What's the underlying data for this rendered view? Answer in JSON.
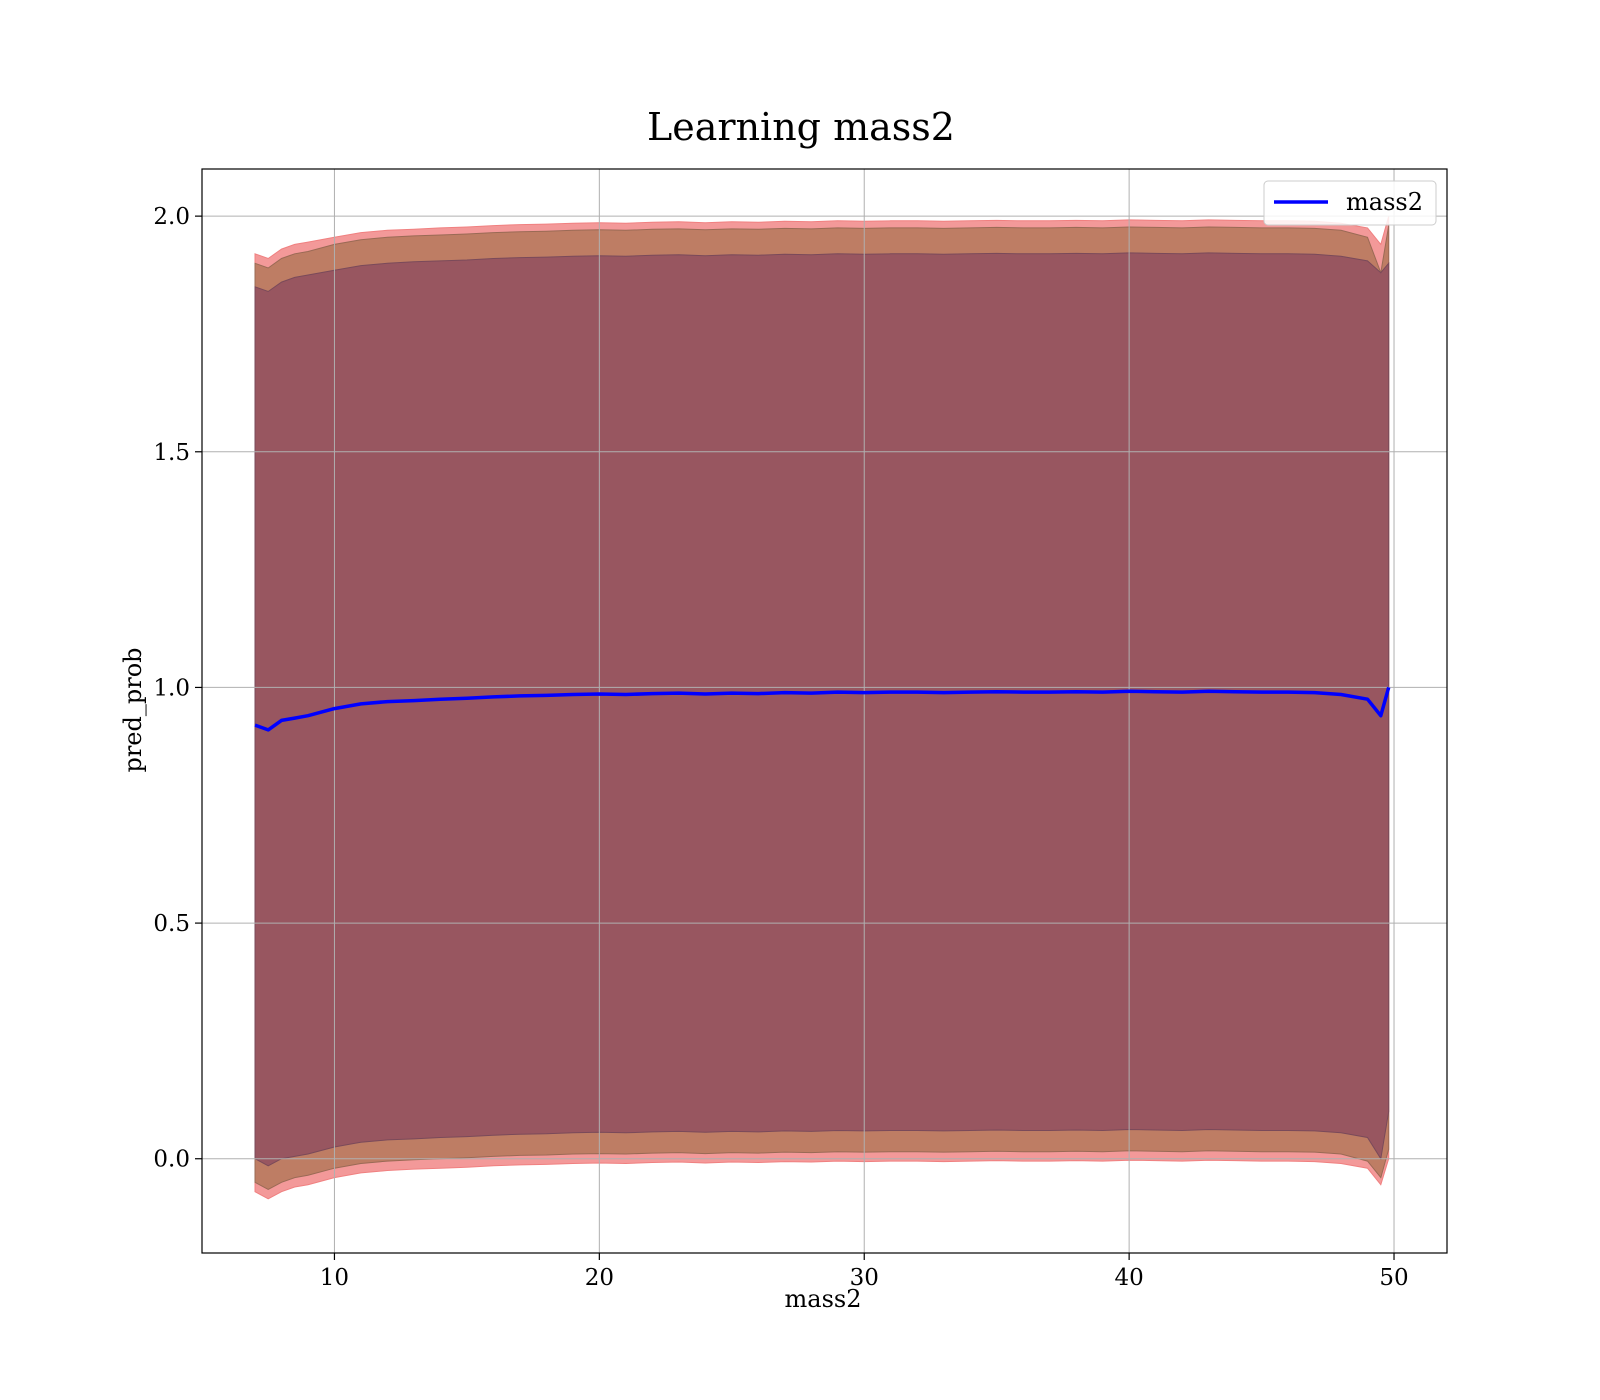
{
  "chart_data": {
    "type": "line",
    "title": "Learning mass2",
    "xlabel": "mass2",
    "ylabel": "pred_prob",
    "xlim": [
      5,
      52
    ],
    "ylim": [
      -0.2,
      2.1
    ],
    "xticks": [
      "10",
      "20",
      "30",
      "40",
      "50"
    ],
    "yticks": [
      "0.0",
      "0.5",
      "1.0",
      "1.5",
      "2.0"
    ],
    "grid": true,
    "legend": {
      "placement": "top-right",
      "entries": [
        "mass2"
      ]
    },
    "colors": {
      "line": "#0000ff",
      "outer_band": "#f08080",
      "middle_band": "#b87a5e",
      "inner_band": "#8b4a5f"
    },
    "series": [
      {
        "name": "mass2",
        "x": [
          7.0,
          7.5,
          8.0,
          8.5,
          9.0,
          10.0,
          11.0,
          12.0,
          13.0,
          14.0,
          15.0,
          16.0,
          17.0,
          18.0,
          19.0,
          20.0,
          21.0,
          22.0,
          23.0,
          24.0,
          25.0,
          26.0,
          27.0,
          28.0,
          29.0,
          30.0,
          31.0,
          32.0,
          33.0,
          34.0,
          35.0,
          36.0,
          37.0,
          38.0,
          39.0,
          40.0,
          41.0,
          42.0,
          43.0,
          44.0,
          45.0,
          46.0,
          47.0,
          48.0,
          49.0,
          49.5,
          49.8
        ],
        "y": [
          0.92,
          0.91,
          0.93,
          0.935,
          0.94,
          0.955,
          0.965,
          0.97,
          0.972,
          0.975,
          0.977,
          0.98,
          0.982,
          0.983,
          0.985,
          0.986,
          0.985,
          0.987,
          0.988,
          0.986,
          0.988,
          0.987,
          0.989,
          0.988,
          0.99,
          0.989,
          0.99,
          0.99,
          0.989,
          0.99,
          0.991,
          0.99,
          0.99,
          0.991,
          0.99,
          0.992,
          0.991,
          0.99,
          0.992,
          0.991,
          0.99,
          0.99,
          0.989,
          0.985,
          0.975,
          0.94,
          1.0
        ]
      }
    ],
    "bands": {
      "outer_upper": [
        1.92,
        1.91,
        1.93,
        1.94,
        1.945,
        1.955,
        1.965,
        1.97,
        1.972,
        1.975,
        1.977,
        1.98,
        1.982,
        1.983,
        1.985,
        1.986,
        1.985,
        1.987,
        1.988,
        1.986,
        1.988,
        1.987,
        1.989,
        1.988,
        1.99,
        1.989,
        1.99,
        1.99,
        1.989,
        1.99,
        1.991,
        1.99,
        1.99,
        1.991,
        1.99,
        1.992,
        1.991,
        1.99,
        1.992,
        1.991,
        1.99,
        1.99,
        1.989,
        1.985,
        1.975,
        1.94,
        2.0
      ],
      "outer_lower": [
        -0.07,
        -0.085,
        -0.07,
        -0.06,
        -0.055,
        -0.04,
        -0.03,
        -0.025,
        -0.022,
        -0.02,
        -0.018,
        -0.015,
        -0.013,
        -0.012,
        -0.01,
        -0.009,
        -0.01,
        -0.008,
        -0.007,
        -0.009,
        -0.007,
        -0.008,
        -0.006,
        -0.007,
        -0.005,
        -0.006,
        -0.005,
        -0.005,
        -0.006,
        -0.005,
        -0.004,
        -0.005,
        -0.005,
        -0.004,
        -0.005,
        -0.003,
        -0.004,
        -0.005,
        -0.003,
        -0.004,
        -0.005,
        -0.005,
        -0.006,
        -0.01,
        -0.02,
        -0.055,
        0.0
      ],
      "middle_upper": [
        1.9,
        1.89,
        1.91,
        1.92,
        1.925,
        1.94,
        1.95,
        1.955,
        1.958,
        1.96,
        1.962,
        1.965,
        1.967,
        1.968,
        1.97,
        1.971,
        1.97,
        1.972,
        1.973,
        1.971,
        1.973,
        1.972,
        1.974,
        1.973,
        1.975,
        1.974,
        1.975,
        1.975,
        1.974,
        1.975,
        1.976,
        1.975,
        1.975,
        1.976,
        1.975,
        1.977,
        1.976,
        1.975,
        1.977,
        1.976,
        1.975,
        1.975,
        1.974,
        1.97,
        1.955,
        1.88,
        1.98
      ],
      "middle_lower": [
        -0.05,
        -0.065,
        -0.05,
        -0.04,
        -0.035,
        -0.02,
        -0.01,
        -0.005,
        -0.002,
        0.0,
        0.002,
        0.005,
        0.007,
        0.008,
        0.01,
        0.011,
        0.01,
        0.012,
        0.013,
        0.011,
        0.013,
        0.012,
        0.014,
        0.013,
        0.015,
        0.014,
        0.015,
        0.015,
        0.014,
        0.015,
        0.016,
        0.015,
        0.015,
        0.016,
        0.015,
        0.017,
        0.016,
        0.015,
        0.017,
        0.016,
        0.015,
        0.015,
        0.014,
        0.01,
        -0.005,
        -0.04,
        0.02
      ],
      "inner_upper": [
        1.85,
        1.84,
        1.86,
        1.87,
        1.875,
        1.885,
        1.895,
        1.9,
        1.903,
        1.905,
        1.907,
        1.91,
        1.912,
        1.913,
        1.915,
        1.916,
        1.915,
        1.917,
        1.918,
        1.916,
        1.918,
        1.917,
        1.919,
        1.918,
        1.92,
        1.919,
        1.92,
        1.92,
        1.919,
        1.92,
        1.921,
        1.92,
        1.92,
        1.921,
        1.92,
        1.922,
        1.921,
        1.92,
        1.922,
        1.921,
        1.92,
        1.92,
        1.919,
        1.915,
        1.905,
        1.88,
        1.9
      ],
      "inner_lower": [
        0.0,
        -0.015,
        0.0,
        0.005,
        0.01,
        0.025,
        0.035,
        0.04,
        0.042,
        0.045,
        0.047,
        0.05,
        0.052,
        0.053,
        0.055,
        0.056,
        0.055,
        0.057,
        0.058,
        0.056,
        0.058,
        0.057,
        0.059,
        0.058,
        0.06,
        0.059,
        0.06,
        0.06,
        0.059,
        0.06,
        0.061,
        0.06,
        0.06,
        0.061,
        0.06,
        0.062,
        0.061,
        0.06,
        0.062,
        0.061,
        0.06,
        0.06,
        0.059,
        0.055,
        0.045,
        0.0,
        0.1
      ]
    }
  }
}
